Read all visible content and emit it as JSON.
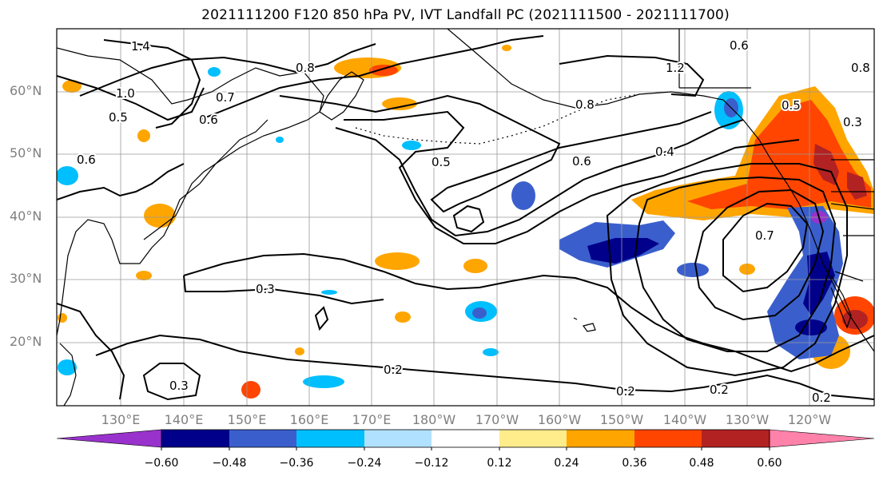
{
  "title": "2021111200 F120 850 hPa PV, IVT Landfall PC (2021111500 - 2021111700)",
  "lat_labels": [
    "60°N",
    "50°N",
    "40°N",
    "30°N",
    "20°N"
  ],
  "lon_labels": [
    "130°E",
    "140°E",
    "150°E",
    "160°E",
    "170°E",
    "180°W",
    "170°W",
    "160°W",
    "150°W",
    "140°W",
    "130°W",
    "120°W"
  ],
  "colorbar": {
    "ticks": [
      "−0.60",
      "−0.48",
      "−0.36",
      "−0.24",
      "−0.12",
      "0.12",
      "0.24",
      "0.36",
      "0.48",
      "0.60"
    ],
    "colors": [
      "#9932cc",
      "#00008b",
      "#3a5fcd",
      "#00bfff",
      "#b0e2ff",
      "#ffffff",
      "#ffec8b",
      "#ffa500",
      "#ff4500",
      "#b22222",
      "#ff82ab"
    ]
  },
  "contour_labels": [
    "1.4",
    "1.0",
    "0.5",
    "0.8",
    "0.6",
    "0.7",
    "0.3",
    "0.4",
    "0.6",
    "0.8",
    "0.5",
    "0.3",
    "0.2",
    "0.2",
    "0.2",
    "0.2",
    "0.3",
    "0.7",
    "0.6",
    "0.5",
    "0.6",
    "1.2",
    "0.8"
  ]
}
